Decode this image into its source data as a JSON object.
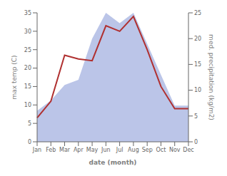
{
  "chart_data": {
    "type": "line",
    "categories": [
      "Jan",
      "Feb",
      "Mar",
      "Apr",
      "May",
      "Jun",
      "Jul",
      "Aug",
      "Sep",
      "Oct",
      "Nov",
      "Dec"
    ],
    "series": [
      {
        "type": "area",
        "axis": "y2",
        "color": "#bbc5e8",
        "values": [
          6,
          8,
          11,
          12,
          20,
          25,
          23,
          25,
          19,
          13,
          7,
          7
        ]
      },
      {
        "type": "line",
        "axis": "y",
        "color": "#b03030",
        "values": [
          6.5,
          11.0,
          23.5,
          22.5,
          22.0,
          31.5,
          30.0,
          34.0,
          25.0,
          15.0,
          9.0,
          9.0
        ]
      }
    ],
    "xlabel": "date (month)",
    "ylabel": "max temp (C)",
    "y2label": "med. precipitation (kg/m2)",
    "ylim": [
      0,
      35
    ],
    "yticks": [
      0,
      5,
      10,
      15,
      20,
      25,
      30,
      35
    ],
    "y2lim": [
      0,
      25
    ],
    "y2ticks": [
      0,
      5,
      10,
      15,
      20,
      25
    ],
    "grid": false
  }
}
